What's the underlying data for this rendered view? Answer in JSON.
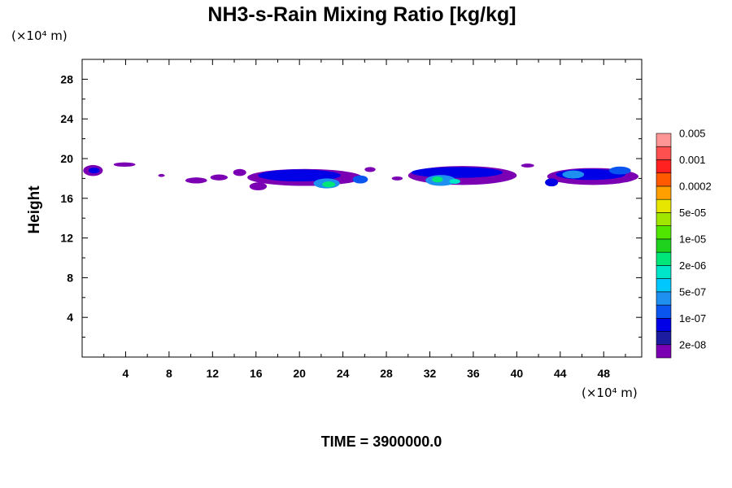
{
  "chart_data": {
    "type": "heatmap",
    "title": "NH3-s-Rain Mixing Ratio [kg/kg]",
    "ylabel": "Height",
    "x_unit_label": "(×10⁴ m)",
    "y_unit_label": "(×10⁴ m)",
    "xlim": [
      0,
      51.5
    ],
    "ylim": [
      0,
      30
    ],
    "x_ticks": [
      4,
      8,
      12,
      16,
      20,
      24,
      28,
      32,
      36,
      40,
      44,
      48
    ],
    "y_ticks": [
      4,
      8,
      12,
      16,
      20,
      24,
      28
    ],
    "time_label": "TIME = 3900000.0",
    "colorbar": {
      "colors": [
        "#7b00b4",
        "#1c1ca0",
        "#0000e6",
        "#0a55f0",
        "#1e90f0",
        "#00c8ff",
        "#00e6c8",
        "#00e678",
        "#1ed21e",
        "#50e600",
        "#a0e600",
        "#e6e600",
        "#ffa000",
        "#ff5a00",
        "#ff2020",
        "#ff5050",
        "#ff9696"
      ],
      "labels": [
        "2e-08",
        "1e-07",
        "5e-07",
        "2e-06",
        "1e-05",
        "5e-05",
        "0.0002",
        "0.001",
        "0.005"
      ]
    },
    "regions": [
      {
        "x": 1.0,
        "y": 18.8,
        "rx": 0.9,
        "ry": 0.55,
        "level": 0
      },
      {
        "x": 1.1,
        "y": 18.8,
        "rx": 0.5,
        "ry": 0.3,
        "level": 2
      },
      {
        "x": 3.9,
        "y": 19.4,
        "rx": 1.0,
        "ry": 0.22,
        "level": 0
      },
      {
        "x": 7.3,
        "y": 18.3,
        "rx": 0.3,
        "ry": 0.15,
        "level": 0
      },
      {
        "x": 10.5,
        "y": 17.8,
        "rx": 1.0,
        "ry": 0.3,
        "level": 0
      },
      {
        "x": 12.6,
        "y": 18.1,
        "rx": 0.8,
        "ry": 0.3,
        "level": 0
      },
      {
        "x": 14.5,
        "y": 18.6,
        "rx": 0.6,
        "ry": 0.35,
        "level": 0
      },
      {
        "x": 20.5,
        "y": 18.1,
        "rx": 5.3,
        "ry": 0.85,
        "level": 0
      },
      {
        "x": 16.2,
        "y": 17.2,
        "rx": 0.8,
        "ry": 0.4,
        "level": 0
      },
      {
        "x": 20.0,
        "y": 18.3,
        "rx": 3.8,
        "ry": 0.6,
        "level": 2
      },
      {
        "x": 22.5,
        "y": 17.5,
        "rx": 1.2,
        "ry": 0.5,
        "level": 4
      },
      {
        "x": 22.7,
        "y": 17.4,
        "rx": 0.6,
        "ry": 0.3,
        "level": 7
      },
      {
        "x": 25.6,
        "y": 17.9,
        "rx": 0.7,
        "ry": 0.4,
        "level": 3
      },
      {
        "x": 26.5,
        "y": 18.9,
        "rx": 0.5,
        "ry": 0.25,
        "level": 0
      },
      {
        "x": 29.0,
        "y": 18.0,
        "rx": 0.5,
        "ry": 0.2,
        "level": 0
      },
      {
        "x": 35.0,
        "y": 18.3,
        "rx": 5.0,
        "ry": 0.95,
        "level": 0
      },
      {
        "x": 34.5,
        "y": 18.6,
        "rx": 4.2,
        "ry": 0.55,
        "level": 2
      },
      {
        "x": 33.0,
        "y": 17.8,
        "rx": 1.4,
        "ry": 0.55,
        "level": 4
      },
      {
        "x": 32.7,
        "y": 17.9,
        "rx": 0.5,
        "ry": 0.3,
        "level": 7
      },
      {
        "x": 34.3,
        "y": 17.7,
        "rx": 0.5,
        "ry": 0.25,
        "level": 6
      },
      {
        "x": 41.0,
        "y": 19.3,
        "rx": 0.6,
        "ry": 0.2,
        "level": 0
      },
      {
        "x": 47.0,
        "y": 18.2,
        "rx": 4.2,
        "ry": 0.85,
        "level": 0
      },
      {
        "x": 46.8,
        "y": 18.4,
        "rx": 3.2,
        "ry": 0.55,
        "level": 2
      },
      {
        "x": 45.2,
        "y": 18.4,
        "rx": 1.0,
        "ry": 0.4,
        "level": 4
      },
      {
        "x": 49.5,
        "y": 18.8,
        "rx": 1.0,
        "ry": 0.4,
        "level": 3
      },
      {
        "x": 43.2,
        "y": 17.6,
        "rx": 0.6,
        "ry": 0.4,
        "level": 2
      }
    ]
  }
}
